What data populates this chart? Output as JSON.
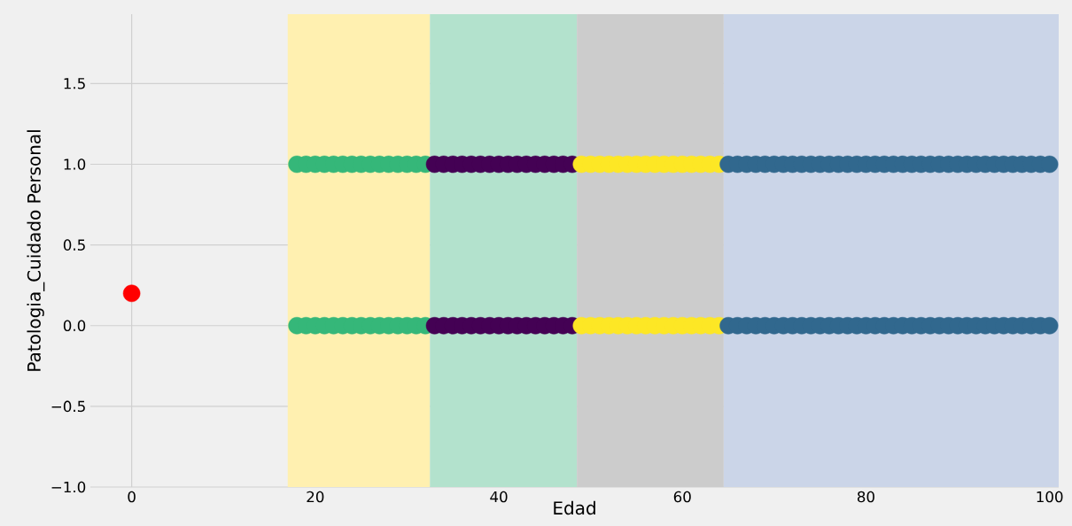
{
  "chart_data": {
    "type": "scatter",
    "xlabel": "Edad",
    "ylabel": "Patologia_Cuidado Personal",
    "xlim": [
      -4.5,
      101
    ],
    "ylim": [
      -1.0,
      1.93
    ],
    "xticks": [
      0,
      20,
      40,
      60,
      80,
      100
    ],
    "yticks": [
      {
        "value": -1.0,
        "label": "−1.0"
      },
      {
        "value": -0.5,
        "label": "−0.5"
      },
      {
        "value": 0.0,
        "label": "0.0"
      },
      {
        "value": 0.5,
        "label": "0.5"
      },
      {
        "value": 1.0,
        "label": "1.0"
      },
      {
        "value": 1.5,
        "label": "1.5"
      }
    ],
    "grid": true,
    "bands": [
      {
        "axis": "x",
        "from": 17,
        "to": 32.5,
        "color": "#fff0b0"
      },
      {
        "axis": "x",
        "from": 32.5,
        "to": 48.5,
        "color": "#b3e2cd"
      },
      {
        "axis": "x",
        "from": 48.5,
        "to": 64.5,
        "color": "#cccccc"
      },
      {
        "axis": "x",
        "from": 64.5,
        "to": 101,
        "color": "#cbd5e8"
      }
    ],
    "series": [
      {
        "color": "#35b779",
        "x": [
          18,
          19,
          20,
          21,
          22,
          23,
          24,
          25,
          26,
          27,
          28,
          29,
          30,
          31,
          32,
          18,
          19,
          20,
          21,
          22,
          23,
          24,
          25,
          26,
          27,
          28,
          29,
          30,
          31,
          32
        ],
        "values": [
          1,
          1,
          1,
          1,
          1,
          1,
          1,
          1,
          1,
          1,
          1,
          1,
          1,
          1,
          1,
          0,
          0,
          0,
          0,
          0,
          0,
          0,
          0,
          0,
          0,
          0,
          0,
          0,
          0,
          0
        ]
      },
      {
        "color": "#440154",
        "x": [
          33,
          34,
          35,
          36,
          37,
          38,
          39,
          40,
          41,
          42,
          43,
          44,
          45,
          46,
          47,
          48,
          33,
          34,
          35,
          36,
          37,
          38,
          39,
          40,
          41,
          42,
          43,
          44,
          45,
          46,
          47,
          48
        ],
        "values": [
          1,
          1,
          1,
          1,
          1,
          1,
          1,
          1,
          1,
          1,
          1,
          1,
          1,
          1,
          1,
          1,
          0,
          0,
          0,
          0,
          0,
          0,
          0,
          0,
          0,
          0,
          0,
          0,
          0,
          0,
          0,
          0
        ]
      },
      {
        "color": "#fde725",
        "x": [
          49,
          50,
          51,
          52,
          53,
          54,
          55,
          56,
          57,
          58,
          59,
          60,
          61,
          62,
          63,
          64,
          49,
          50,
          51,
          52,
          53,
          54,
          55,
          56,
          57,
          58,
          59,
          60,
          61,
          62,
          63,
          64
        ],
        "values": [
          1,
          1,
          1,
          1,
          1,
          1,
          1,
          1,
          1,
          1,
          1,
          1,
          1,
          1,
          1,
          1,
          0,
          0,
          0,
          0,
          0,
          0,
          0,
          0,
          0,
          0,
          0,
          0,
          0,
          0,
          0,
          0
        ]
      },
      {
        "color": "#31688e",
        "x": [
          65,
          66,
          67,
          68,
          69,
          70,
          71,
          72,
          73,
          74,
          75,
          76,
          77,
          78,
          79,
          80,
          81,
          82,
          83,
          84,
          85,
          86,
          87,
          88,
          89,
          90,
          91,
          92,
          93,
          94,
          95,
          96,
          97,
          98,
          99,
          100,
          65,
          66,
          67,
          68,
          69,
          70,
          71,
          72,
          73,
          74,
          75,
          76,
          77,
          78,
          79,
          80,
          81,
          82,
          83,
          84,
          85,
          86,
          87,
          88,
          89,
          90,
          91,
          92,
          93,
          94,
          95,
          96,
          97,
          98,
          99,
          100
        ],
        "values": [
          1,
          1,
          1,
          1,
          1,
          1,
          1,
          1,
          1,
          1,
          1,
          1,
          1,
          1,
          1,
          1,
          1,
          1,
          1,
          1,
          1,
          1,
          1,
          1,
          1,
          1,
          1,
          1,
          1,
          1,
          1,
          1,
          1,
          1,
          1,
          1,
          0,
          0,
          0,
          0,
          0,
          0,
          0,
          0,
          0,
          0,
          0,
          0,
          0,
          0,
          0,
          0,
          0,
          0,
          0,
          0,
          0,
          0,
          0,
          0,
          0,
          0,
          0,
          0,
          0,
          0,
          0,
          0,
          0,
          0,
          0,
          0
        ]
      },
      {
        "color": "#ff0000",
        "x": [
          0
        ],
        "values": [
          0.2
        ]
      }
    ]
  }
}
